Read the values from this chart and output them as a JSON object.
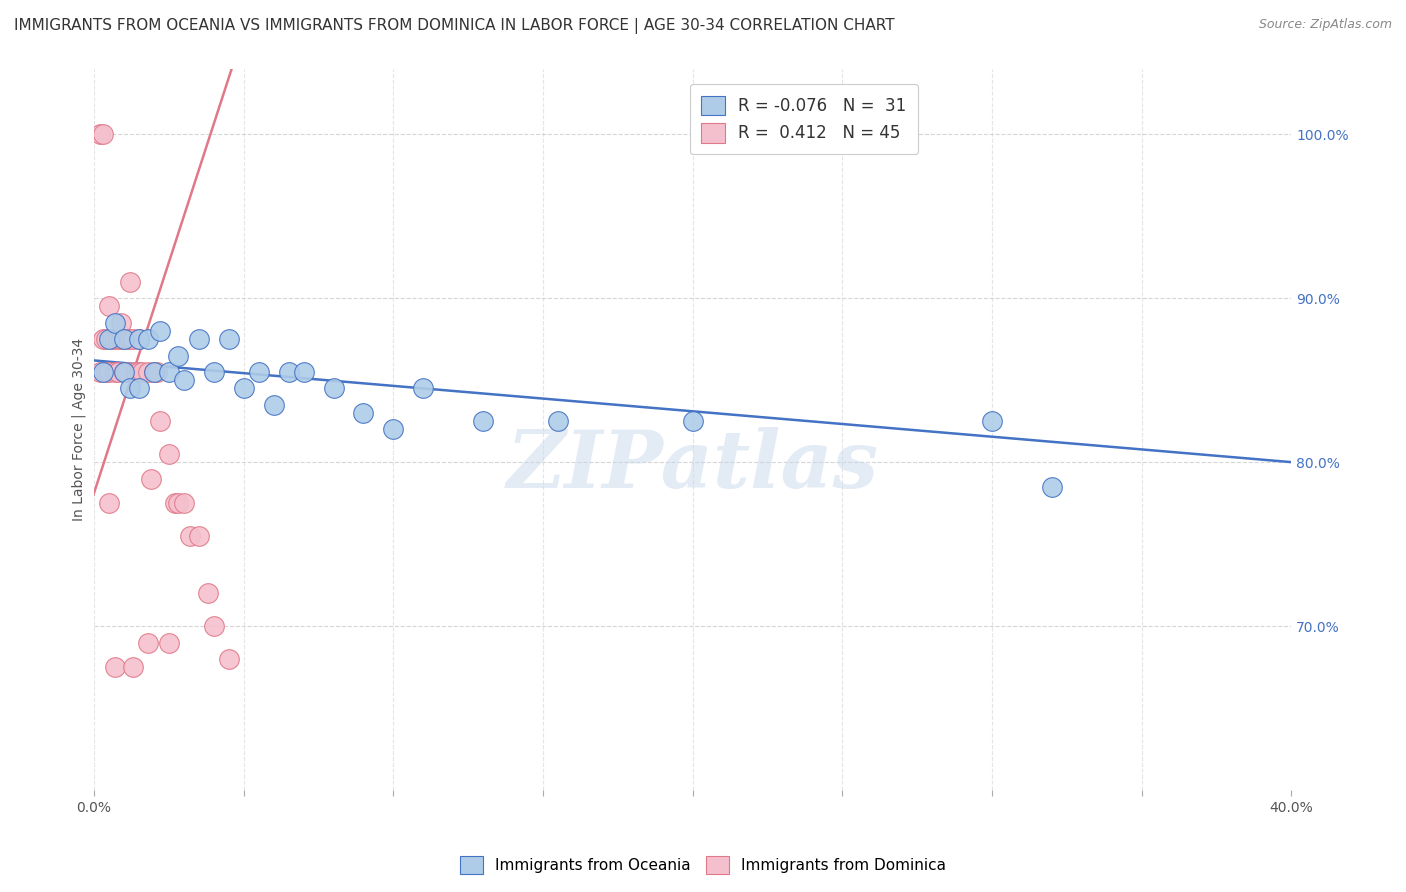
{
  "title": "IMMIGRANTS FROM OCEANIA VS IMMIGRANTS FROM DOMINICA IN LABOR FORCE | AGE 30-34 CORRELATION CHART",
  "source": "Source: ZipAtlas.com",
  "ylabel": "In Labor Force | Age 30-34",
  "xlim": [
    0.0,
    0.4
  ],
  "ylim": [
    0.6,
    1.04
  ],
  "xticks": [
    0.0,
    0.05,
    0.1,
    0.15,
    0.2,
    0.25,
    0.3,
    0.35,
    0.4
  ],
  "yticks": [
    0.7,
    0.8,
    0.9,
    1.0
  ],
  "ytick_labels_right": [
    "70.0%",
    "80.0%",
    "90.0%",
    "100.0%"
  ],
  "xtick_labels": [
    "0.0%",
    "",
    "",
    "",
    "",
    "",
    "",
    "",
    "40.0%"
  ],
  "watermark": "ZIPatlas",
  "legend_blue_r": "-0.076",
  "legend_blue_n": "31",
  "legend_pink_r": "0.412",
  "legend_pink_n": "45",
  "legend_blue_label": "Immigrants from Oceania",
  "legend_pink_label": "Immigrants from Dominica",
  "blue_color": "#aecce8",
  "pink_color": "#f5c0ce",
  "blue_line_color": "#4472c4",
  "pink_line_color": "#e07888",
  "blue_scatter_x": [
    0.003,
    0.005,
    0.007,
    0.01,
    0.01,
    0.012,
    0.015,
    0.015,
    0.018,
    0.02,
    0.022,
    0.025,
    0.028,
    0.03,
    0.035,
    0.04,
    0.045,
    0.05,
    0.055,
    0.06,
    0.065,
    0.07,
    0.08,
    0.09,
    0.1,
    0.11,
    0.13,
    0.155,
    0.2,
    0.3,
    0.32
  ],
  "blue_scatter_y": [
    0.855,
    0.875,
    0.885,
    0.855,
    0.875,
    0.845,
    0.875,
    0.845,
    0.875,
    0.855,
    0.88,
    0.855,
    0.865,
    0.85,
    0.875,
    0.855,
    0.875,
    0.845,
    0.855,
    0.835,
    0.855,
    0.855,
    0.845,
    0.83,
    0.82,
    0.845,
    0.825,
    0.825,
    0.825,
    0.825,
    0.785
  ],
  "pink_scatter_x": [
    0.002,
    0.002,
    0.003,
    0.003,
    0.004,
    0.004,
    0.005,
    0.005,
    0.006,
    0.007,
    0.007,
    0.008,
    0.008,
    0.009,
    0.009,
    0.01,
    0.01,
    0.011,
    0.011,
    0.012,
    0.012,
    0.013,
    0.014,
    0.015,
    0.015,
    0.016,
    0.018,
    0.019,
    0.02,
    0.021,
    0.022,
    0.025,
    0.027,
    0.028,
    0.03,
    0.032,
    0.035,
    0.038,
    0.04,
    0.045,
    0.005,
    0.007,
    0.013,
    0.018,
    0.025
  ],
  "pink_scatter_y": [
    0.855,
    1.0,
    1.0,
    0.875,
    0.875,
    0.855,
    0.855,
    0.895,
    0.875,
    0.875,
    0.855,
    0.875,
    0.855,
    0.875,
    0.885,
    0.875,
    0.855,
    0.875,
    0.855,
    0.875,
    0.91,
    0.875,
    0.855,
    0.875,
    0.855,
    0.855,
    0.855,
    0.79,
    0.855,
    0.855,
    0.825,
    0.805,
    0.775,
    0.775,
    0.775,
    0.755,
    0.755,
    0.72,
    0.7,
    0.68,
    0.775,
    0.675,
    0.675,
    0.69,
    0.69
  ],
  "blue_trendline_x": [
    0.0,
    0.4
  ],
  "blue_trendline_y": [
    0.862,
    0.8
  ],
  "pink_trendline_x": [
    -0.002,
    0.046
  ],
  "pink_trendline_y": [
    0.77,
    1.04
  ],
  "background_color": "#ffffff",
  "grid_color": "#cccccc",
  "title_fontsize": 11,
  "axis_label_fontsize": 10,
  "tick_fontsize": 10
}
